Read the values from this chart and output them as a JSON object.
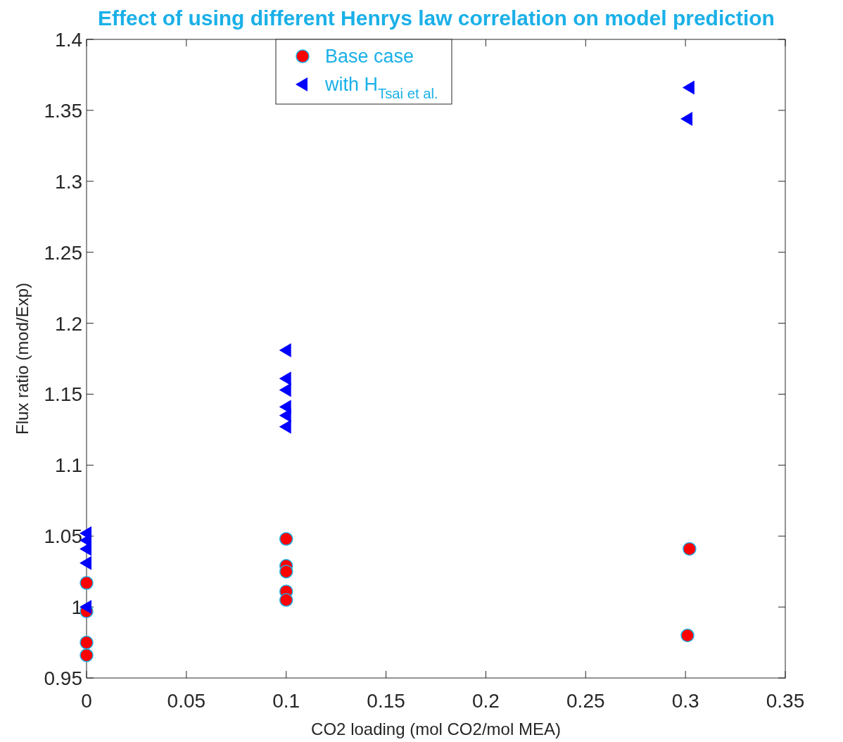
{
  "chart_data": {
    "type": "scatter",
    "title": "Effect of using different Henrys law correlation on model prediction",
    "xlabel": "CO2 loading (mol CO2/mol MEA)",
    "ylabel": "Flux ratio (mod/Exp)",
    "xlim": [
      0,
      0.35
    ],
    "xticks": [
      0,
      0.05,
      0.1,
      0.15,
      0.2,
      0.25,
      0.3,
      0.35
    ],
    "ylim": [
      0.95,
      1.4
    ],
    "yticks": [
      0.95,
      1,
      1.05,
      1.1,
      1.15,
      1.2,
      1.25,
      1.3,
      1.35,
      1.4
    ],
    "grid": false,
    "legend": "top",
    "series": [
      {
        "name": "Base case",
        "color": "#ff0000",
        "marker": "circle",
        "x": [
          0,
          0,
          0,
          0,
          0.1,
          0.1,
          0.1,
          0.1,
          0.1,
          0.302,
          0.301
        ],
        "values": [
          1.017,
          0.997,
          0.975,
          0.966,
          1.048,
          1.029,
          1.025,
          1.011,
          1.005,
          1.041,
          0.98
        ]
      },
      {
        "name": "with H$_{Tsai et al.}$",
        "color": "#0000ff",
        "marker": "triangle",
        "x": [
          0,
          0,
          0,
          0,
          0,
          0.1,
          0.1,
          0.1,
          0.1,
          0.1,
          0.1,
          0.302,
          0.301
        ],
        "values": [
          1.052,
          1.047,
          1.041,
          1.031,
          1.0,
          1.181,
          1.161,
          1.153,
          1.141,
          1.135,
          1.127,
          1.366,
          1.344
        ]
      }
    ]
  }
}
